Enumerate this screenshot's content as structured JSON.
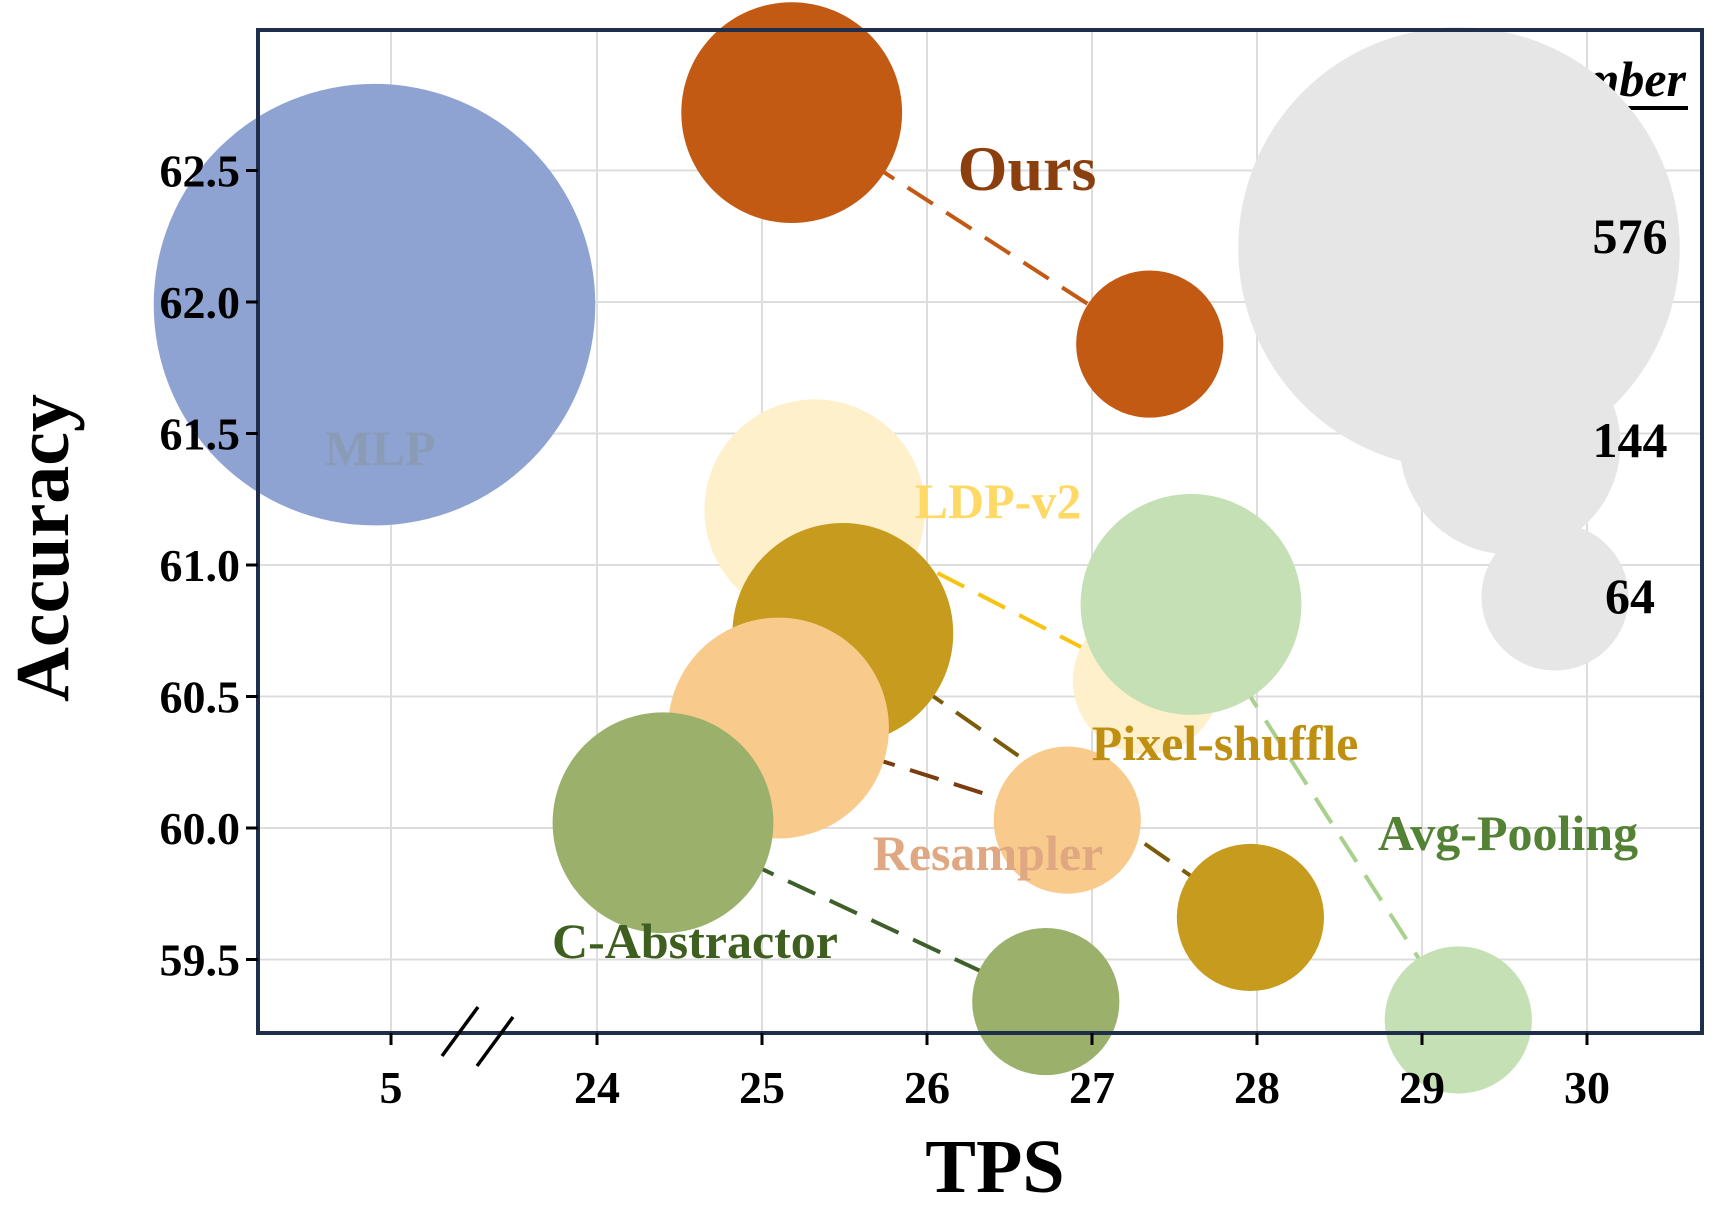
{
  "chart_data": {
    "type": "scatter",
    "xlabel": "TPS",
    "ylabel": "Accuracy",
    "x_ticks": [
      {
        "value": 5,
        "label": "5"
      },
      {
        "value": 24,
        "label": "24"
      },
      {
        "value": 25,
        "label": "25"
      },
      {
        "value": 26,
        "label": "26"
      },
      {
        "value": 27,
        "label": "27"
      },
      {
        "value": 28,
        "label": "28"
      },
      {
        "value": 29,
        "label": "29"
      },
      {
        "value": 30,
        "label": "30"
      }
    ],
    "x_axis_break": {
      "low_range": [
        4.2,
        5.4
      ],
      "high_range": [
        23.5,
        30.7
      ]
    },
    "ylim": [
      59.17,
      63.0
    ],
    "y_ticks": [
      {
        "value": 59.5,
        "label": "59.5"
      },
      {
        "value": 60.0,
        "label": "60.0"
      },
      {
        "value": 60.5,
        "label": "60.5"
      },
      {
        "value": 61.0,
        "label": "61.0"
      },
      {
        "value": 61.5,
        "label": "61.5"
      },
      {
        "value": 62.0,
        "label": "62.0"
      },
      {
        "value": 62.5,
        "label": "62.5"
      }
    ],
    "grid": true,
    "series": [
      {
        "name": "MLP",
        "color": "#8FA3D2",
        "label_color": "#8A9BB5",
        "points": [
          {
            "x": 4.9,
            "tokens": 576,
            "y": 61.99
          }
        ]
      },
      {
        "name": "Ours",
        "color": "#C25A14",
        "label_color": "#8B3F0E",
        "points": [
          {
            "x": 25.18,
            "tokens": 144,
            "y": 62.72
          },
          {
            "x": 27.35,
            "tokens": 64,
            "y": 61.84
          }
        ]
      },
      {
        "name": "LDP-v2",
        "color": "#FFF0CC",
        "label_color": "#FFD966",
        "line_color": "#F9C313",
        "points": [
          {
            "x": 25.32,
            "tokens": 144,
            "y": 61.21
          },
          {
            "x": 27.33,
            "tokens": 64,
            "y": 60.56
          }
        ]
      },
      {
        "name": "Pixel-shuffle",
        "color": "#C79B1E",
        "label_color": "#BF8F12",
        "line_color": "#7A5C0A",
        "points": [
          {
            "x": 25.49,
            "tokens": 144,
            "y": 60.74
          },
          {
            "x": 27.96,
            "tokens": 64,
            "y": 59.66
          }
        ]
      },
      {
        "name": "Resampler",
        "color": "#F8CB8C",
        "label_color": "#E0A882",
        "line_color": "#7A3C10",
        "points": [
          {
            "x": 25.1,
            "tokens": 144,
            "y": 60.38
          },
          {
            "x": 26.85,
            "tokens": 64,
            "y": 60.03
          }
        ]
      },
      {
        "name": "Avg-Pooling",
        "color": "#C5E0B4",
        "label_color": "#548235",
        "line_color": "#A9D18E",
        "points": [
          {
            "x": 27.6,
            "tokens": 144,
            "y": 60.85
          },
          {
            "x": 29.22,
            "tokens": 64,
            "y": 59.27
          }
        ]
      },
      {
        "name": "C-Abstractor",
        "color": "#9BB06B",
        "label_color": "#3F5F20",
        "line_color": "#3F5F2A",
        "points": [
          {
            "x": 24.4,
            "tokens": 144,
            "y": 60.02
          },
          {
            "x": 26.72,
            "tokens": 64,
            "y": 59.34
          }
        ]
      }
    ],
    "size_legend": {
      "title": "Token number",
      "position": "top-right",
      "entries": [
        {
          "tokens": 576,
          "label": "576"
        },
        {
          "tokens": 144,
          "label": "144"
        },
        {
          "tokens": 64,
          "label": "64"
        }
      ]
    }
  }
}
